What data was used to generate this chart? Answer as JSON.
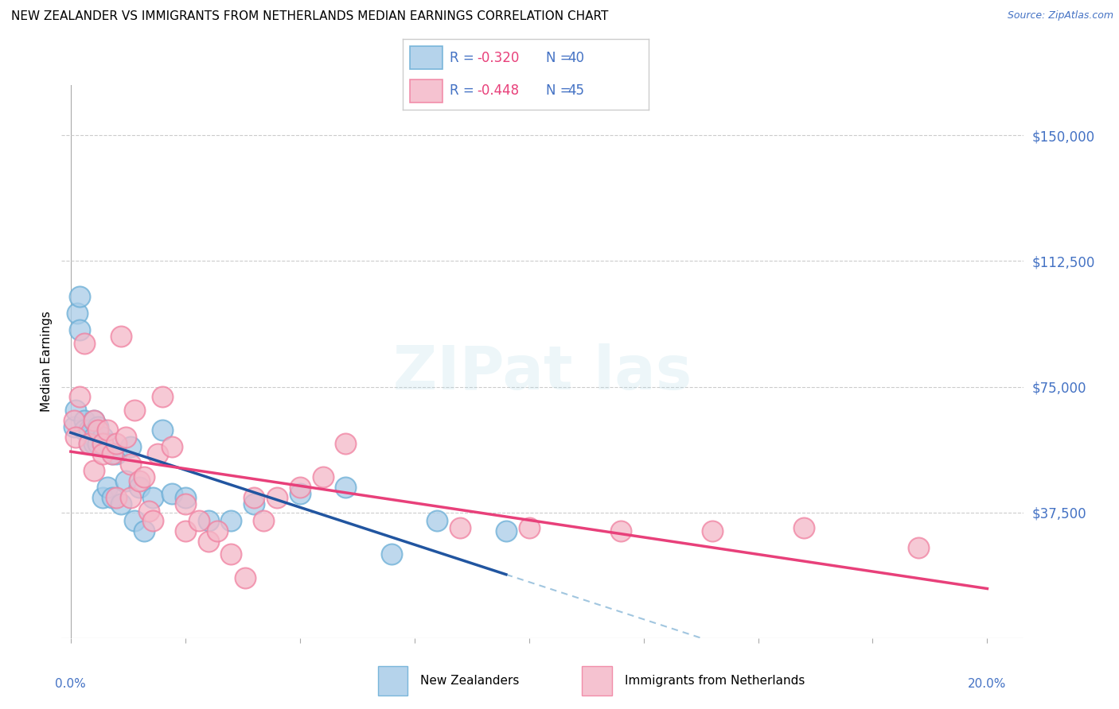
{
  "title": "NEW ZEALANDER VS IMMIGRANTS FROM NETHERLANDS MEDIAN EARNINGS CORRELATION CHART",
  "source": "Source: ZipAtlas.com",
  "ylabel": "Median Earnings",
  "yticks": [
    0,
    37500,
    75000,
    112500,
    150000
  ],
  "ytick_labels": [
    "",
    "$37,500",
    "$75,000",
    "$112,500",
    "$150,000"
  ],
  "ylim": [
    0,
    165000
  ],
  "xlim": [
    -0.002,
    0.208
  ],
  "blue_color": "#a8cce8",
  "pink_color": "#f4b8c8",
  "blue_edge_color": "#6aaed6",
  "pink_edge_color": "#f080a0",
  "blue_line_color": "#2155a0",
  "pink_line_color": "#e8407a",
  "dashed_color": "#8ab8d8",
  "legend_R_blue": "R = -0.320",
  "legend_N_blue": "N = 40",
  "legend_R_pink": "R = -0.448",
  "legend_N_pink": "N = 45",
  "label_blue": "New Zealanders",
  "label_pink": "Immigrants from Netherlands",
  "axis_color": "#4472c4",
  "title_fontsize": 11,
  "source_fontsize": 9,
  "blue_x": [
    0.0008,
    0.001,
    0.0015,
    0.002,
    0.002,
    0.003,
    0.003,
    0.004,
    0.004,
    0.005,
    0.005,
    0.005,
    0.006,
    0.006,
    0.007,
    0.007,
    0.007,
    0.008,
    0.008,
    0.009,
    0.009,
    0.01,
    0.011,
    0.012,
    0.013,
    0.014,
    0.015,
    0.016,
    0.018,
    0.02,
    0.022,
    0.025,
    0.03,
    0.035,
    0.04,
    0.05,
    0.06,
    0.07,
    0.08,
    0.095
  ],
  "blue_y": [
    63000,
    68000,
    97000,
    102000,
    92000,
    65000,
    62000,
    62000,
    58000,
    65000,
    60000,
    58000,
    63000,
    58000,
    60000,
    58000,
    42000,
    58000,
    45000,
    55000,
    42000,
    55000,
    40000,
    47000,
    57000,
    35000,
    45000,
    32000,
    42000,
    62000,
    43000,
    42000,
    35000,
    35000,
    40000,
    43000,
    45000,
    25000,
    35000,
    32000
  ],
  "pink_x": [
    0.0008,
    0.001,
    0.002,
    0.003,
    0.004,
    0.005,
    0.005,
    0.006,
    0.007,
    0.007,
    0.008,
    0.009,
    0.01,
    0.01,
    0.011,
    0.012,
    0.013,
    0.013,
    0.014,
    0.015,
    0.016,
    0.017,
    0.018,
    0.019,
    0.02,
    0.022,
    0.025,
    0.025,
    0.028,
    0.03,
    0.032,
    0.035,
    0.038,
    0.04,
    0.042,
    0.045,
    0.05,
    0.055,
    0.06,
    0.085,
    0.1,
    0.12,
    0.14,
    0.16,
    0.185
  ],
  "pink_y": [
    65000,
    60000,
    72000,
    88000,
    58000,
    50000,
    65000,
    62000,
    58000,
    55000,
    62000,
    55000,
    58000,
    42000,
    90000,
    60000,
    42000,
    52000,
    68000,
    47000,
    48000,
    38000,
    35000,
    55000,
    72000,
    57000,
    32000,
    40000,
    35000,
    29000,
    32000,
    25000,
    18000,
    42000,
    35000,
    42000,
    45000,
    48000,
    58000,
    33000,
    33000,
    32000,
    32000,
    33000,
    27000
  ]
}
